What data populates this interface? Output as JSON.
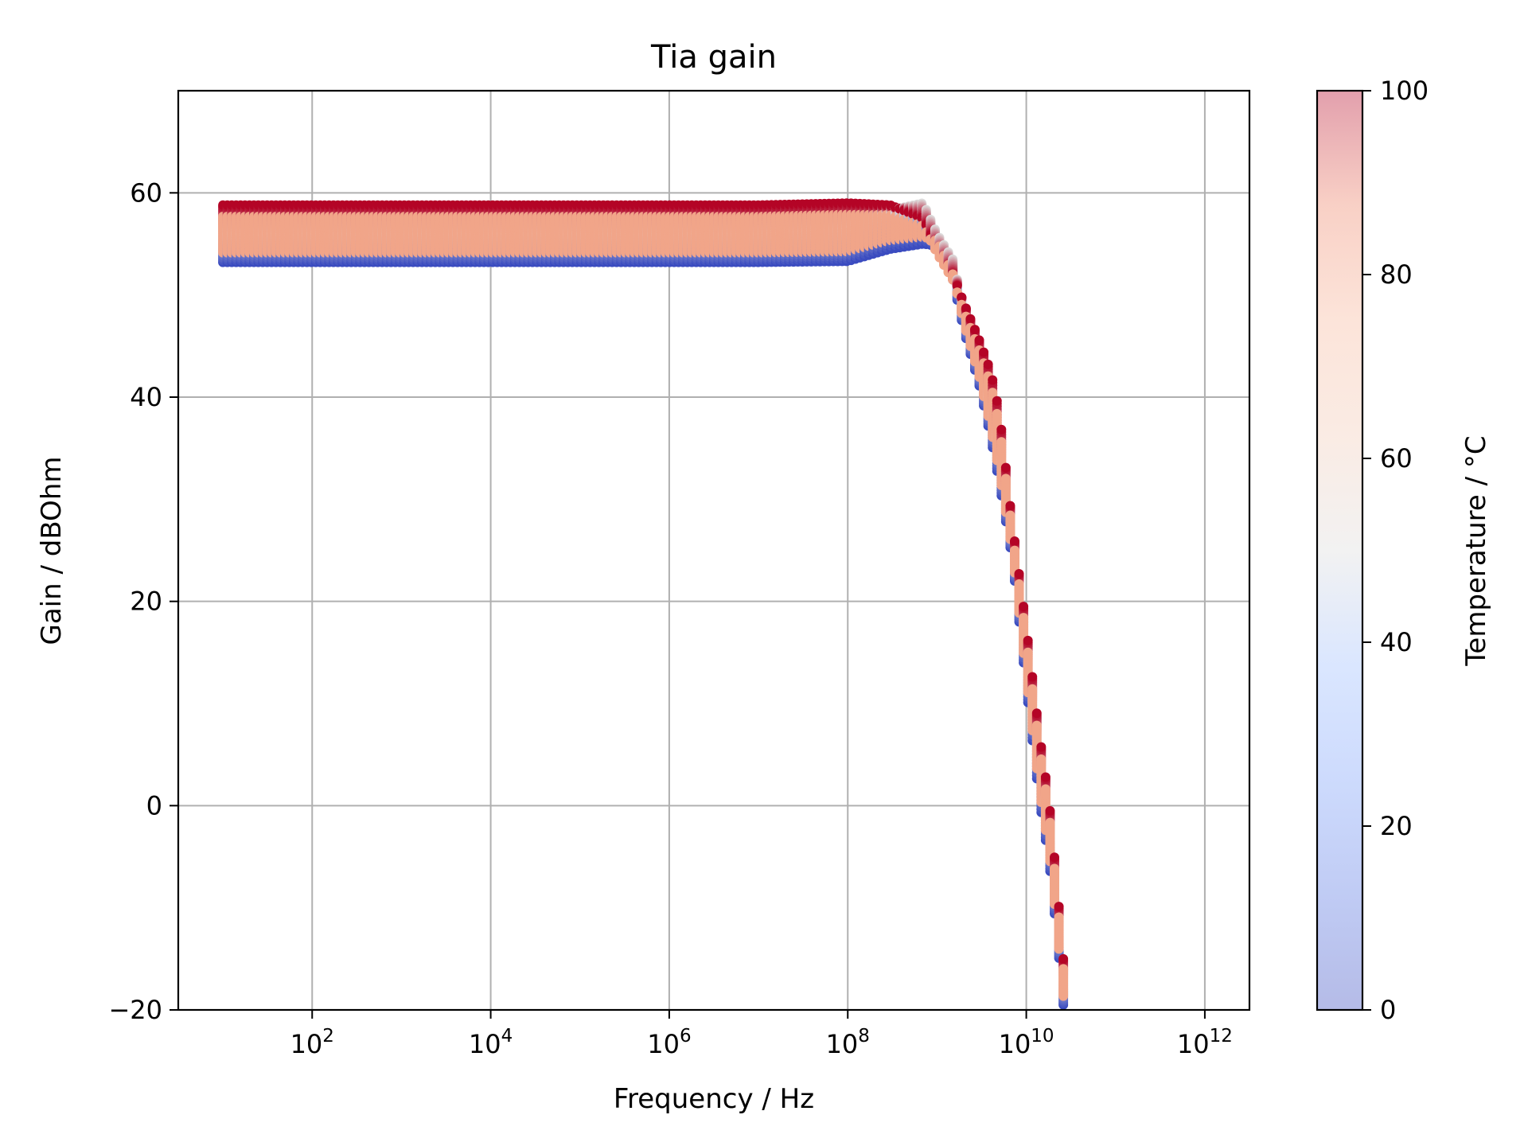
{
  "chart_data": {
    "type": "scatter",
    "title": "Tia gain",
    "xlabel": "Frequency / Hz",
    "ylabel": "Gain / dBOhm",
    "xscale": "log",
    "x_range_decades": [
      0.5,
      12.5
    ],
    "ylim": [
      -20,
      70
    ],
    "grid": true,
    "x_ticks": [
      {
        "label_base": "10",
        "label_exp": "2",
        "value": 100
      },
      {
        "label_base": "10",
        "label_exp": "4",
        "value": 10000
      },
      {
        "label_base": "10",
        "label_exp": "6",
        "value": 1000000
      },
      {
        "label_base": "10",
        "label_exp": "8",
        "value": 100000000
      },
      {
        "label_base": "10",
        "label_exp": "10",
        "value": 10000000000
      },
      {
        "label_base": "10",
        "label_exp": "12",
        "value": 1000000000000
      }
    ],
    "y_ticks": [
      {
        "label": "−20",
        "value": -20
      },
      {
        "label": "0",
        "value": 0
      },
      {
        "label": "20",
        "value": 20
      },
      {
        "label": "40",
        "value": 40
      },
      {
        "label": "60",
        "value": 60
      }
    ],
    "colorbar": {
      "label": "Temperature / °C",
      "cmap": "coolwarm",
      "range": [
        0,
        100
      ],
      "ticks": [
        {
          "label": "0",
          "value": 0
        },
        {
          "label": "20",
          "value": 20
        },
        {
          "label": "40",
          "value": 40
        },
        {
          "label": "60",
          "value": 60
        },
        {
          "label": "80",
          "value": 80
        },
        {
          "label": "100",
          "value": 100
        }
      ]
    },
    "series": [
      {
        "temp_c": 0,
        "color": "#3b4cc0",
        "points": [
          [
            10,
            53.2
          ],
          [
            1000,
            53.2
          ],
          [
            100000,
            53.2
          ],
          [
            10000000,
            53.2
          ],
          [
            100000000,
            53.3
          ],
          [
            300000000,
            54.5
          ],
          [
            700000000,
            55
          ],
          [
            1000000000,
            54.8
          ],
          [
            1500000000,
            51.5
          ],
          [
            2000000000,
            46.5
          ],
          [
            3000000000,
            41.0
          ],
          [
            4000000000,
            36.0
          ],
          [
            5000000000,
            31.5
          ],
          [
            7000000000,
            24.0
          ],
          [
            10000000000,
            11.5
          ],
          [
            14000000000,
            0.5
          ],
          [
            18000000000,
            -5.5
          ],
          [
            22000000000,
            -12.8
          ],
          [
            26000000000,
            -19.5
          ]
        ]
      },
      {
        "temp_c": 50,
        "color": "#dddcdc",
        "points": [
          [
            10,
            56
          ],
          [
            1000,
            56
          ],
          [
            100000,
            56
          ],
          [
            10000000,
            56
          ],
          [
            100000000,
            56.5
          ],
          [
            300000000,
            58.3
          ],
          [
            700000000,
            59
          ],
          [
            1000000000,
            56
          ],
          [
            1500000000,
            53.5
          ],
          [
            2000000000,
            48.5
          ],
          [
            3000000000,
            43.5
          ],
          [
            4000000000,
            39.0
          ],
          [
            5000000000,
            35.0
          ],
          [
            7000000000,
            26.0
          ],
          [
            10000000000,
            15.0
          ],
          [
            14000000000,
            4.5
          ],
          [
            18000000000,
            -2.0
          ],
          [
            22000000000,
            -10.0
          ],
          [
            26000000000,
            -17.0
          ]
        ]
      },
      {
        "temp_c": 100,
        "color": "#b40426",
        "points": [
          [
            10,
            58.8
          ],
          [
            1000,
            58.8
          ],
          [
            100000,
            58.8
          ],
          [
            10000000,
            58.8
          ],
          [
            100000000,
            59.0
          ],
          [
            300000000,
            58.8
          ],
          [
            700000000,
            57.5
          ],
          [
            1000000000,
            54.5
          ],
          [
            1500000000,
            52.0
          ],
          [
            2000000000,
            49.2
          ],
          [
            3000000000,
            45.5
          ],
          [
            4000000000,
            42.5
          ],
          [
            5000000000,
            38.5
          ],
          [
            7000000000,
            27.5
          ],
          [
            10000000000,
            17.5
          ],
          [
            14000000000,
            7.0
          ],
          [
            18000000000,
            0.5
          ],
          [
            22000000000,
            -7.5
          ],
          [
            26000000000,
            -15.0
          ]
        ]
      }
    ],
    "sample_steps": 26
  }
}
